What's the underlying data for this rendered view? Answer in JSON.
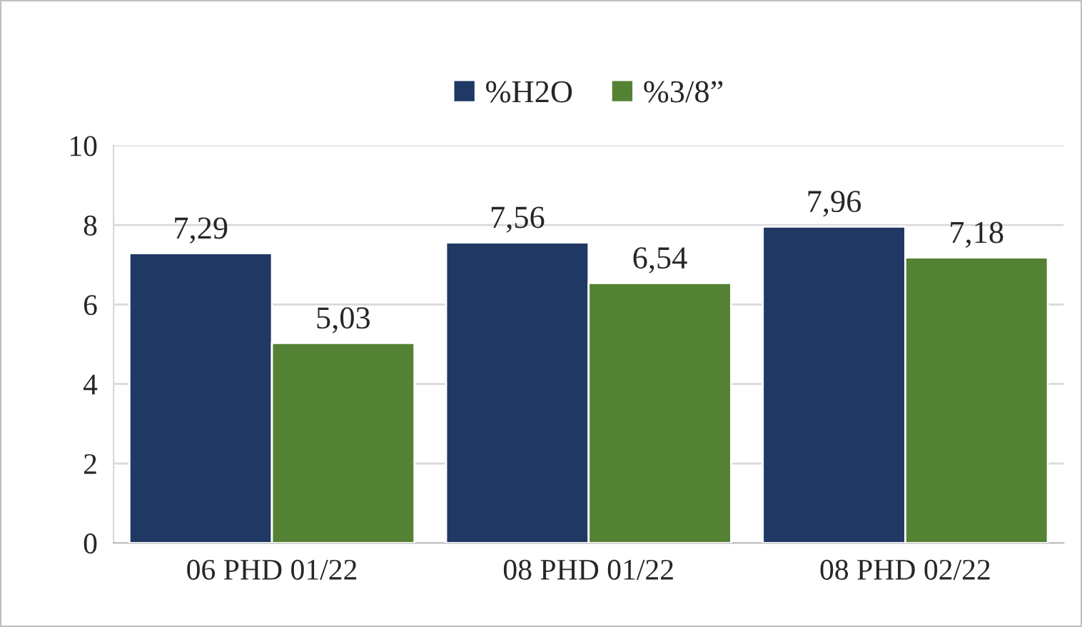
{
  "chart_data": {
    "type": "bar",
    "categories": [
      "06 PHD 01/22",
      "08 PHD 01/22",
      "08 PHD 02/22"
    ],
    "series": [
      {
        "name": "%H2O",
        "color": "#1f3864",
        "values": [
          7.29,
          7.56,
          7.96
        ],
        "value_labels": [
          "7,29",
          "7,56",
          "7,96"
        ]
      },
      {
        "name": "%3/8”",
        "color": "#548235",
        "values": [
          5.03,
          6.54,
          7.18
        ],
        "value_labels": [
          "5,03",
          "6,54",
          "7,18"
        ]
      }
    ],
    "ylim": [
      0,
      10
    ],
    "yticks": [
      0,
      2,
      4,
      6,
      8,
      10
    ],
    "grid": "y",
    "legend": "top"
  }
}
